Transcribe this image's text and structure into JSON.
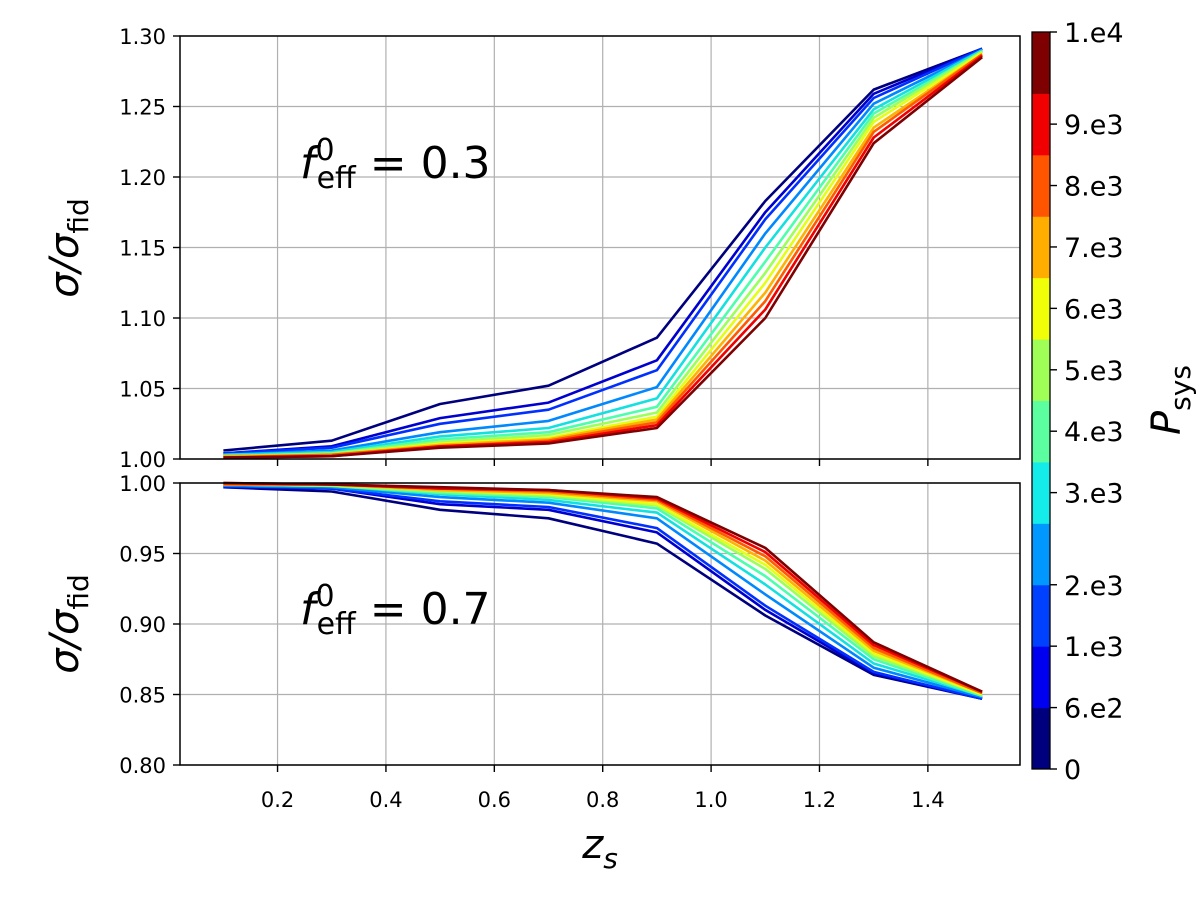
{
  "chart_data": [
    {
      "type": "line",
      "panel": "top",
      "annotation": {
        "symbol": "f",
        "sup": "0",
        "sub": "eff",
        "text": " = 0.3"
      },
      "ylabel": {
        "symbol": "σ/σ",
        "sub": "fid"
      },
      "xlim": [
        0.02,
        1.57
      ],
      "ylim": [
        1.0,
        1.3
      ],
      "x_ticks": [
        0.2,
        0.4,
        0.6,
        0.8,
        1.0,
        1.2,
        1.4
      ],
      "y_ticks": [
        1.0,
        1.05,
        1.1,
        1.15,
        1.2,
        1.25,
        1.3
      ],
      "y_tick_labels": [
        "1.00",
        "1.05",
        "1.10",
        "1.15",
        "1.20",
        "1.25",
        "1.30"
      ],
      "grid": true,
      "x": [
        0.1,
        0.3,
        0.5,
        0.7,
        0.9,
        1.1,
        1.3,
        1.5
      ],
      "series": [
        {
          "color": "#00007f",
          "values": [
            1.006,
            1.013,
            1.039,
            1.052,
            1.086,
            1.183,
            1.262,
            1.291
          ]
        },
        {
          "color": "#0000d0",
          "values": [
            1.004,
            1.009,
            1.029,
            1.04,
            1.07,
            1.175,
            1.259,
            1.291
          ]
        },
        {
          "color": "#0030ff",
          "values": [
            1.004,
            1.008,
            1.025,
            1.035,
            1.063,
            1.17,
            1.256,
            1.291
          ]
        },
        {
          "color": "#0088ff",
          "values": [
            1.003,
            1.006,
            1.019,
            1.027,
            1.051,
            1.16,
            1.252,
            1.29
          ]
        },
        {
          "color": "#14e0e0",
          "values": [
            1.003,
            1.005,
            1.016,
            1.022,
            1.043,
            1.15,
            1.248,
            1.29
          ]
        },
        {
          "color": "#4dffad",
          "values": [
            1.002,
            1.004,
            1.014,
            1.019,
            1.037,
            1.14,
            1.245,
            1.289
          ]
        },
        {
          "color": "#9cff5a",
          "values": [
            1.002,
            1.004,
            1.012,
            1.017,
            1.033,
            1.132,
            1.242,
            1.289
          ]
        },
        {
          "color": "#e4ff13",
          "values": [
            1.002,
            1.003,
            1.011,
            1.015,
            1.03,
            1.125,
            1.239,
            1.288
          ]
        },
        {
          "color": "#ffb300",
          "values": [
            1.002,
            1.003,
            1.01,
            1.014,
            1.028,
            1.118,
            1.235,
            1.287
          ]
        },
        {
          "color": "#ff5a00",
          "values": [
            1.001,
            1.003,
            1.009,
            1.013,
            1.026,
            1.112,
            1.232,
            1.287
          ]
        },
        {
          "color": "#f00000",
          "values": [
            1.001,
            1.002,
            1.009,
            1.012,
            1.024,
            1.106,
            1.228,
            1.286
          ]
        },
        {
          "color": "#7f0000",
          "values": [
            1.001,
            1.002,
            1.008,
            1.011,
            1.022,
            1.1,
            1.224,
            1.285
          ]
        }
      ]
    },
    {
      "type": "line",
      "panel": "bottom",
      "annotation": {
        "symbol": "f",
        "sup": "0",
        "sub": "eff",
        "text": " = 0.7"
      },
      "ylabel": {
        "symbol": "σ/σ",
        "sub": "fid"
      },
      "xlabel": {
        "symbol": "z",
        "sub": "s"
      },
      "xlim": [
        0.02,
        1.57
      ],
      "ylim": [
        0.8,
        1.0
      ],
      "x_ticks": [
        0.2,
        0.4,
        0.6,
        0.8,
        1.0,
        1.2,
        1.4
      ],
      "x_tick_labels": [
        "0.2",
        "0.4",
        "0.6",
        "0.8",
        "1.0",
        "1.2",
        "1.4"
      ],
      "y_ticks": [
        0.8,
        0.85,
        0.9,
        0.95,
        1.0
      ],
      "y_tick_labels": [
        "0.80",
        "0.85",
        "0.90",
        "0.95",
        "1.00"
      ],
      "grid": true,
      "x": [
        0.1,
        0.3,
        0.5,
        0.7,
        0.9,
        1.1,
        1.3,
        1.5
      ],
      "series": [
        {
          "color": "#00007f",
          "values": [
            0.997,
            0.994,
            0.981,
            0.975,
            0.957,
            0.906,
            0.864,
            0.847
          ]
        },
        {
          "color": "#0000d0",
          "values": [
            0.997,
            0.996,
            0.985,
            0.981,
            0.965,
            0.91,
            0.865,
            0.847
          ]
        },
        {
          "color": "#0030ff",
          "values": [
            0.998,
            0.996,
            0.987,
            0.983,
            0.968,
            0.913,
            0.866,
            0.847
          ]
        },
        {
          "color": "#0088ff",
          "values": [
            0.998,
            0.997,
            0.99,
            0.986,
            0.975,
            0.921,
            0.869,
            0.848
          ]
        },
        {
          "color": "#14e0e0",
          "values": [
            0.999,
            0.998,
            0.992,
            0.988,
            0.979,
            0.928,
            0.872,
            0.849
          ]
        },
        {
          "color": "#4dffad",
          "values": [
            0.999,
            0.998,
            0.993,
            0.99,
            0.982,
            0.934,
            0.875,
            0.849
          ]
        },
        {
          "color": "#9cff5a",
          "values": [
            0.999,
            0.998,
            0.994,
            0.991,
            0.984,
            0.939,
            0.877,
            0.85
          ]
        },
        {
          "color": "#e4ff13",
          "values": [
            0.999,
            0.999,
            0.995,
            0.992,
            0.985,
            0.942,
            0.879,
            0.85
          ]
        },
        {
          "color": "#ffb300",
          "values": [
            0.999,
            0.999,
            0.995,
            0.993,
            0.987,
            0.945,
            0.881,
            0.851
          ]
        },
        {
          "color": "#ff5a00",
          "values": [
            0.999,
            0.999,
            0.996,
            0.994,
            0.988,
            0.948,
            0.883,
            0.851
          ]
        },
        {
          "color": "#f00000",
          "values": [
            1.0,
            0.999,
            0.996,
            0.995,
            0.989,
            0.951,
            0.885,
            0.852
          ]
        },
        {
          "color": "#7f0000",
          "values": [
            1.0,
            0.999,
            0.997,
            0.995,
            0.99,
            0.954,
            0.887,
            0.852
          ]
        }
      ]
    }
  ],
  "colorbar": {
    "label": {
      "symbol": "P",
      "sub": "sys"
    },
    "colors": [
      "#00007f",
      "#0000f0",
      "#0040ff",
      "#0098ff",
      "#14ecea",
      "#5cffa0",
      "#a0ff56",
      "#f0ff08",
      "#ffae00",
      "#ff5400",
      "#f00000",
      "#7f0000"
    ],
    "tick_labels": [
      "0",
      "6.e2",
      "1.e3",
      "2.e3",
      "3.e3",
      "4.e3",
      "5.e3",
      "6.e3",
      "7.e3",
      "8.e3",
      "9.e3",
      "1.e4"
    ],
    "tick_positions": [
      0,
      1,
      2,
      3,
      4.5,
      5.5,
      6.5,
      7.5,
      8.5,
      9.5,
      10.5,
      12
    ]
  }
}
